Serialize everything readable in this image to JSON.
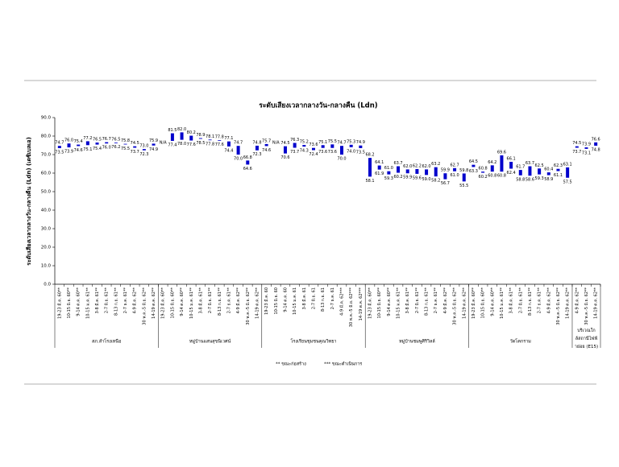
{
  "chart_data": {
    "type": "range_bar",
    "title": "ระดับเสียงเวลากลางวัน-กลางคืน (Ldn)",
    "y_label": "ระดับเสียงเวลากลางวัน-กลางคืน (Ldn) (เดซิเบลเอ)",
    "color": "#0000cc",
    "ylim": [
      0,
      90
    ],
    "yticks": [
      {
        "value": 0,
        "label": "0.0"
      },
      {
        "value": 10,
        "label": "10.0"
      },
      {
        "value": 20,
        "label": "20.0"
      },
      {
        "value": 30,
        "label": "30.0"
      },
      {
        "value": 40,
        "label": "40.0"
      },
      {
        "value": 50,
        "label": "50.0"
      },
      {
        "value": 60,
        "label": "60.0"
      },
      {
        "value": 70,
        "label": "70.0"
      },
      {
        "value": 80,
        "label": "80.0"
      },
      {
        "value": 90,
        "label": "90.0"
      }
    ],
    "notes": [
      "** ขณะก่อสร้าง",
      "*** ขณะดำเนินการ"
    ],
    "groups": [
      {
        "name": "สภ.ลำโรงเหนือ",
        "categories": [
          "19-23 มี.ค. 60**",
          "10-15 มิ.ย. 60**",
          "9-14 ต.ค. 60**",
          "10-15 ม.ค. 61**",
          "3-8 มี.ค. 61**",
          "2-7 มิ.ย. 61**",
          "8-13 ก.ย. 61**",
          "2-7 ธ.ค. 61**",
          "4-9 มี.ค. 62**",
          "30 พ.ค.-5 มิ.ย. 62**",
          "14-19 ต.ค. 62**"
        ],
        "low": [
          73.5,
          73.9,
          74.6,
          75.1,
          75.4,
          76.0,
          76.2,
          75.5,
          73.7,
          72.3,
          74.9
        ],
        "low_labels": [
          "73.5",
          "73.9",
          "74.6",
          "75.1",
          "75.4",
          "76.0",
          "76.2",
          "75.5",
          "73.7",
          "72.3",
          "74.9"
        ],
        "high": [
          74.7,
          76.0,
          75.4,
          77.2,
          76.5,
          76.7,
          76.5,
          75.8,
          74.5,
          73.0,
          75.9
        ],
        "high_labels": [
          "74.7",
          "76.0",
          "75.4",
          "77.2",
          "76.5",
          "76.7",
          "76.5",
          "75.8",
          "74.5",
          "73.0",
          "75.9"
        ]
      },
      {
        "name": "หมู่บ้านแสนสุขนิเวศน์",
        "categories": [
          "19-23 มี.ค. 60**",
          "10-15 มิ.ย. 60**",
          "9-14 ต.ค. 60**",
          "10-15 ม.ค. 61**",
          "3-8 มี.ค. 61**",
          "2-7 มิ.ย. 61**",
          "8-13 ก.ย. 61**",
          "2-7 ธ.ค. 61**",
          "4-9 มี.ค. 62**",
          "30 พ.ค.-5 มิ.ย. 62**",
          "14-19 ต.ค. 62**"
        ],
        "low": [
          null,
          77.4,
          78.0,
          77.6,
          78.5,
          77.8,
          77.6,
          74.4,
          70.0,
          64.6,
          72.3
        ],
        "low_labels": [
          null,
          "77.4",
          "78.0",
          "77.6",
          "78.5",
          "77.8",
          "77.6",
          "74.4",
          "70.0",
          "64.6",
          "72.3"
        ],
        "high": [
          null,
          81.5,
          82.0,
          80.2,
          78.9,
          78.1,
          77.8,
          77.1,
          74.7,
          66.8,
          74.8
        ],
        "high_labels": [
          "N/A",
          "81.5",
          "82.0",
          "80.2",
          "78.9",
          "78.1",
          "77.8",
          "77.1",
          "74.7",
          "66.8",
          "74.8"
        ]
      },
      {
        "name": "โรงเรียนชุมชนคุณวิทยา",
        "categories": [
          "19-23 มี.ค. 60",
          "10-15 มิ.ย. 60",
          "9-14 ต.ค. 60",
          "10-15 ม.ค. 61",
          "3-8 มี.ค. 61",
          "2-7 มิ.ย. 61",
          "8-13 ก.ย. 61",
          "2-7 ธ.ค. 61",
          "4-9 มี.ค. 62***",
          "30 พ.ค.-5 มิ.ย. 62***",
          "14-19 ต.ค. 62***"
        ],
        "low": [
          74.6,
          null,
          70.6,
          73.7,
          74.3,
          72.4,
          73.6,
          73.6,
          70.0,
          74.0,
          73.5
        ],
        "low_labels": [
          "74.6",
          null,
          "70.6",
          "73.7",
          "74.3",
          "72.4",
          "73.6",
          "73.6",
          "70.0",
          "74.0",
          "73.5"
        ],
        "high": [
          75.7,
          null,
          74.5,
          76.3,
          75.2,
          73.6,
          75.1,
          75.5,
          74.7,
          75.3,
          74.9
        ],
        "high_labels": [
          "75.7",
          "N/A",
          "74.5",
          "76.3",
          "75.2",
          "73.6",
          "75.1",
          "75.5",
          "74.7",
          "75.3",
          "74.9"
        ]
      },
      {
        "name": "หมู่บ้านชมพูศิริวิลล์",
        "categories": [
          "19-23 มี.ค. 60**",
          "10-15 มิ.ย. 60**",
          "9-14 ต.ค. 60**",
          "10-15 ม.ค. 61**",
          "3-8 มี.ค. 61**",
          "2-7 มิ.ย. 61**",
          "8-13 ก.ย. 61**",
          "2-7 ธ.ค. 61**",
          "4-9 มี.ค. 62**",
          "30 พ.ค.-5 มิ.ย. 62**",
          "14-19 ต.ค. 62**"
        ],
        "low": [
          58.1,
          61.9,
          59.3,
          60.2,
          59.9,
          59.6,
          59.0,
          58.2,
          56.7,
          61.0,
          55.5
        ],
        "low_labels": [
          "58.1",
          "61.9",
          "59.3",
          "60.2",
          "59.9",
          "59.6",
          "59.0",
          "58.2",
          "56.7",
          "61.0",
          "55.5"
        ],
        "high": [
          68.2,
          64.1,
          61.0,
          63.7,
          62.0,
          62.2,
          62.0,
          63.2,
          59.9,
          62.7,
          59.8
        ],
        "high_labels": [
          "68.2",
          "64.1",
          "61.0",
          "63.7",
          "62.0",
          "62.2",
          "62.0",
          "63.2",
          "59.9",
          "62.7",
          "59.8"
        ]
      },
      {
        "name": "วัดโคกราม",
        "categories": [
          "19-23 มี.ค. 60**",
          "10-15 มิ.ย. 60**",
          "9-14 ต.ค. 60**",
          "10-15 ม.ค. 61**",
          "3-8 มี.ค. 61**",
          "2-7 มิ.ย. 61**",
          "8-13 ก.ย. 61**",
          "2-7 ธ.ค. 61**",
          "4-9 มี.ค. 62**",
          "30 พ.ค.-5 มิ.ย. 62**",
          "14-19 ต.ค. 62**"
        ],
        "low": [
          63.3,
          60.2,
          60.8,
          60.8,
          62.4,
          58.8,
          58.6,
          59.3,
          58.9,
          61.1,
          57.5
        ],
        "low_labels": [
          "63.3",
          "60.2",
          "60.8",
          "60.8",
          "62.4",
          "58.8",
          "58.6",
          "59.3",
          "58.9",
          "61.1",
          "57.5"
        ],
        "high": [
          64.5,
          60.8,
          64.2,
          69.6,
          66.1,
          61.7,
          63.7,
          62.5,
          60.4,
          62.3,
          63.1
        ],
        "high_labels": [
          "64.5",
          "60.8",
          "64.2",
          "69.6",
          "66.1",
          "61.7",
          "63.7",
          "62.5",
          "60.4",
          "62.3",
          "63.1"
        ]
      },
      {
        "name": "บริเวณใกล้สถานีไฟฟ้าย่อย (E15)",
        "categories": [
          "4-9 มี.ค. 62**",
          "30 พ.ค.-5 มิ.ย. 62**",
          "14-19 ต.ค. 62**"
        ],
        "low": [
          73.7,
          73.1,
          74.8
        ],
        "low_labels": [
          "73.7",
          "73.1",
          "74.8"
        ],
        "high": [
          74.5,
          73.9,
          76.6
        ],
        "high_labels": [
          "74.5",
          "73.9",
          "76.6"
        ]
      }
    ]
  }
}
